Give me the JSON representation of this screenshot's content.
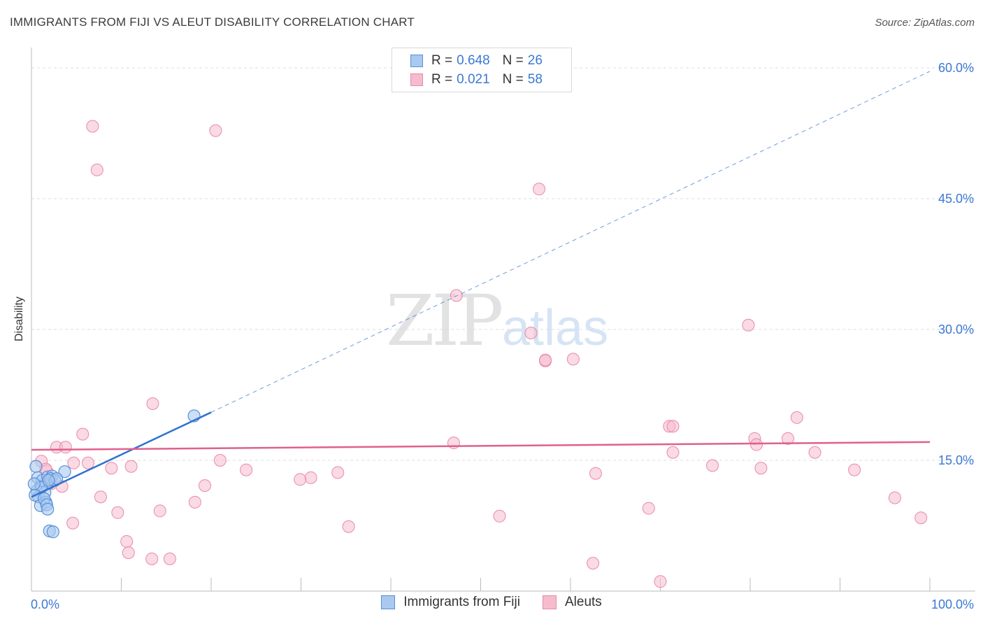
{
  "title": "IMMIGRANTS FROM FIJI VS ALEUT DISABILITY CORRELATION CHART",
  "source": "Source: ZipAtlas.com",
  "watermark": {
    "zip": "ZIP",
    "atlas": "atlas"
  },
  "legend": {
    "rows": [
      {
        "r_label": "R =",
        "r_value": "0.648",
        "n_label": "N =",
        "n_value": "26"
      },
      {
        "r_label": "R =",
        "r_value": "0.021",
        "n_label": "N =",
        "n_value": "58"
      }
    ]
  },
  "bottom_legend": {
    "fiji": "Immigrants from Fiji",
    "aleut": "Aleuts"
  },
  "colors": {
    "fiji_fill": "#a9c9f0",
    "fiji_stroke": "#5a8fd8",
    "fiji_line": "#2f72d0",
    "aleut_fill": "#f6bccd",
    "aleut_stroke": "#e88aa8",
    "aleut_line": "#e0608e",
    "axis_label": "#3b78d4",
    "grid": "#dcdcdc"
  },
  "chart_data": {
    "type": "scatter",
    "title": "IMMIGRANTS FROM FIJI VS ALEUT DISABILITY CORRELATION CHART",
    "xlabel": "",
    "ylabel": "Disability",
    "xlim": [
      0,
      100
    ],
    "ylim": [
      0,
      60
    ],
    "x_tick_labels": [
      "0.0%",
      "100.0%"
    ],
    "y_ticks": [
      15,
      30,
      45,
      60
    ],
    "y_tick_labels": [
      "15.0%",
      "30.0%",
      "45.0%",
      "60.0%"
    ],
    "legend_position": "top-center",
    "series": [
      {
        "name": "Immigrants from Fiji",
        "r": 0.648,
        "n": 26,
        "trend": {
          "x0": 0,
          "y0": 10.8,
          "x1": 20,
          "y1": 20.5,
          "extend_to_x": 100,
          "extend_y": 59.6
        },
        "points": [
          [
            0.5,
            14.3
          ],
          [
            0.7,
            13.0
          ],
          [
            1.0,
            12.0
          ],
          [
            0.6,
            11.5
          ],
          [
            1.2,
            12.7
          ],
          [
            0.8,
            10.8
          ],
          [
            1.5,
            11.3
          ],
          [
            1.8,
            13.1
          ],
          [
            2.0,
            12.4
          ],
          [
            1.1,
            11.9
          ],
          [
            0.4,
            11.0
          ],
          [
            1.6,
            10.2
          ],
          [
            2.3,
            13.2
          ],
          [
            2.1,
            12.9
          ],
          [
            1.0,
            9.8
          ],
          [
            1.4,
            10.6
          ],
          [
            1.7,
            9.9
          ],
          [
            2.6,
            12.7
          ],
          [
            1.8,
            9.4
          ],
          [
            2.0,
            6.9
          ],
          [
            2.4,
            6.8
          ],
          [
            3.7,
            13.7
          ],
          [
            2.8,
            12.9
          ],
          [
            0.3,
            12.3
          ],
          [
            1.9,
            12.7
          ],
          [
            18.1,
            20.1
          ]
        ]
      },
      {
        "name": "Aleuts",
        "r": 0.021,
        "n": 58,
        "trend": {
          "x0": 0,
          "y0": 16.2,
          "x1": 100,
          "y1": 17.1
        },
        "points": [
          [
            6.8,
            53.3
          ],
          [
            7.3,
            48.3
          ],
          [
            20.5,
            52.8
          ],
          [
            56.5,
            46.1
          ],
          [
            47.3,
            33.9
          ],
          [
            55.6,
            29.6
          ],
          [
            79.8,
            30.5
          ],
          [
            57.2,
            26.4
          ],
          [
            60.3,
            26.6
          ],
          [
            13.5,
            21.5
          ],
          [
            57.2,
            26.5
          ],
          [
            71.0,
            18.9
          ],
          [
            71.4,
            18.9
          ],
          [
            85.2,
            19.9
          ],
          [
            5.7,
            18.0
          ],
          [
            47.0,
            17.0
          ],
          [
            80.5,
            17.5
          ],
          [
            80.7,
            16.8
          ],
          [
            84.2,
            17.5
          ],
          [
            71.4,
            15.9
          ],
          [
            87.2,
            15.9
          ],
          [
            1.1,
            14.9
          ],
          [
            2.8,
            16.5
          ],
          [
            3.8,
            16.5
          ],
          [
            6.3,
            14.7
          ],
          [
            4.7,
            14.7
          ],
          [
            8.9,
            14.1
          ],
          [
            11.1,
            14.3
          ],
          [
            21.0,
            15.0
          ],
          [
            23.9,
            13.9
          ],
          [
            34.1,
            13.6
          ],
          [
            31.1,
            13.0
          ],
          [
            29.9,
            12.8
          ],
          [
            62.8,
            13.5
          ],
          [
            75.8,
            14.4
          ],
          [
            81.2,
            14.1
          ],
          [
            91.6,
            13.9
          ],
          [
            1.7,
            13.8
          ],
          [
            2.2,
            12.3
          ],
          [
            3.4,
            12.0
          ],
          [
            19.3,
            12.1
          ],
          [
            7.7,
            10.8
          ],
          [
            18.2,
            10.2
          ],
          [
            96.1,
            10.7
          ],
          [
            9.6,
            9.0
          ],
          [
            14.3,
            9.2
          ],
          [
            68.7,
            9.5
          ],
          [
            4.6,
            7.8
          ],
          [
            35.3,
            7.4
          ],
          [
            52.1,
            8.6
          ],
          [
            99.0,
            8.4
          ],
          [
            10.6,
            5.7
          ],
          [
            10.8,
            4.4
          ],
          [
            13.4,
            3.7
          ],
          [
            15.4,
            3.7
          ],
          [
            62.5,
            3.2
          ],
          [
            70.0,
            1.1
          ],
          [
            1.6,
            14.0
          ]
        ]
      }
    ]
  }
}
